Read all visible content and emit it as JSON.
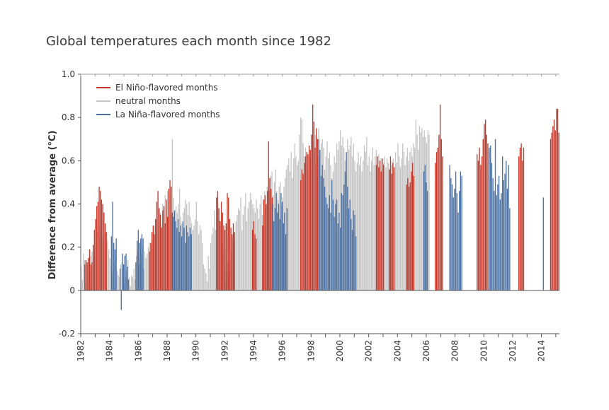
{
  "chart_data": {
    "type": "bar",
    "title": "Global temperatures each month since 1982",
    "xlabel": "",
    "ylabel": "Difference from average (°C)",
    "ylim": [
      -0.2,
      1.0
    ],
    "yticks": [
      "1.0",
      "0.8",
      "0.6",
      "0.4",
      "0.2",
      "0",
      "-0.2"
    ],
    "ytick_values": [
      1.0,
      0.8,
      0.6,
      0.4,
      0.2,
      0,
      -0.2
    ],
    "xtick_labels": [
      "1982",
      "1984",
      "1986",
      "1988",
      "1990",
      "1992",
      "1994",
      "1996",
      "1998",
      "2000",
      "2002",
      "2004",
      "2006",
      "2008",
      "2010",
      "2012",
      "2014"
    ],
    "xtick_years": [
      1982,
      1984,
      1986,
      1988,
      1990,
      1992,
      1994,
      1996,
      1998,
      2000,
      2002,
      2004,
      2006,
      2008,
      2010,
      2012,
      2014
    ],
    "x_start": 1982,
    "x_end": 2015.25,
    "legend_position": "top-left",
    "colors": {
      "elnino": "#c0392b",
      "neutral": "#c4c4c4",
      "lanina": "#4a6fa0",
      "axis": "#555555"
    },
    "series": [
      {
        "name": "El Niño-flavored months",
        "key": "elnino",
        "months": [
          {
            "start": 1982.25,
            "values": [
              0.12,
              0.14,
              0.13,
              0.15,
              0.19,
              0.12,
              0.13,
              0.21,
              0.28,
              0.33,
              0.39,
              0.41
            ]
          },
          {
            "start": 1983.25,
            "values": [
              0.48,
              0.46,
              0.42,
              0.4,
              0.36,
              0.31,
              0.27
            ]
          },
          {
            "start": 1986.75,
            "values": [
              0.18,
              0.22,
              0.27,
              0.3,
              0.26,
              0.33,
              0.41,
              0.46,
              0.38,
              0.35,
              0.29,
              0.37,
              0.39,
              0.31,
              0.42,
              0.34,
              0.47,
              0.51,
              0.48,
              0.36
            ]
          },
          {
            "start": 1991.4,
            "values": [
              0.43,
              0.46,
              0.38,
              0.32,
              0.41,
              0.36,
              0.3,
              0.28,
              0.31,
              0.45,
              0.43,
              0.33,
              0.29,
              0.26,
              0.31,
              0.27
            ]
          },
          {
            "start": 1993.9,
            "values": [
              0.28,
              0.32,
              0.26,
              0.24
            ]
          },
          {
            "start": 1994.6,
            "values": [
              0.3,
              0.42,
              0.44,
              0.4,
              0.46,
              0.69,
              0.52,
              0.47,
              0.43
            ]
          },
          {
            "start": 1997.25,
            "values": [
              0.51,
              0.56,
              0.54,
              0.59,
              0.62,
              0.64,
              0.63,
              0.67,
              0.65,
              0.72,
              0.86,
              0.78,
              0.66,
              0.75,
              0.7,
              0.62
            ]
          },
          {
            "start": 2002.5,
            "values": [
              0.58,
              0.62,
              0.57,
              0.6,
              0.55,
              0.61,
              0.58
            ]
          },
          {
            "start": 2003.4,
            "values": [
              0.56,
              0.62,
              0.54,
              0.59,
              0.57
            ]
          },
          {
            "start": 2004.6,
            "values": [
              0.49,
              0.52,
              0.48,
              0.5,
              0.55,
              0.59,
              0.53
            ]
          },
          {
            "start": 2006.6,
            "values": [
              0.59,
              0.64,
              0.66,
              0.72,
              0.86,
              0.7,
              0.62
            ]
          },
          {
            "start": 2009.5,
            "values": [
              0.63,
              0.6,
              0.66,
              0.58,
              0.62,
              0.7,
              0.77,
              0.79,
              0.72,
              0.68
            ]
          },
          {
            "start": 2012.4,
            "values": [
              0.62,
              0.66,
              0.68,
              0.6,
              0.66
            ]
          },
          {
            "start": 2014.6,
            "values": [
              0.7,
              0.73,
              0.76,
              0.79,
              0.74,
              0.84,
              0.84,
              0.73
            ]
          }
        ]
      },
      {
        "name": "neutral months",
        "key": "neutral"
      },
      {
        "name": "La Niña-flavored months",
        "key": "lanina",
        "months": [
          {
            "start": 1984.1,
            "values": [
              0.25,
              0.41,
              0.22,
              0.19,
              0.24
            ]
          },
          {
            "start": 1984.7,
            "values": [
              0.1,
              -0.09,
              0.17,
              0.12,
              0.16,
              0.17,
              0.11,
              0.05
            ]
          },
          {
            "start": 1985.8,
            "values": [
              0.13,
              0.23,
              0.28,
              0.22,
              0.24,
              0.26,
              0.24
            ]
          },
          {
            "start": 1988.4,
            "values": [
              0.34,
              0.37,
              0.32,
              0.29,
              0.33,
              0.27,
              0.3,
              0.25,
              0.32,
              0.29,
              0.22,
              0.3,
              0.27,
              0.25,
              0.29,
              0.26
            ]
          },
          {
            "start": 1995.3,
            "values": [
              0.4,
              0.32,
              0.38,
              0.45,
              0.36,
              0.4,
              0.33,
              0.45,
              0.41,
              0.31,
              0.36,
              0.26,
              0.38
            ]
          },
          {
            "start": 1998.5,
            "values": [
              0.7,
              0.65,
              0.53,
              0.58,
              0.52,
              0.48,
              0.43,
              0.4,
              0.38,
              0.44,
              0.36,
              0.51,
              0.42,
              0.34,
              0.4,
              0.42,
              0.31,
              0.36,
              0.29,
              0.45,
              0.44,
              0.49,
              0.55,
              0.64,
              0.48,
              0.38,
              0.42,
              0.33,
              0.28,
              0.37,
              0.35,
              0.25
            ]
          },
          {
            "start": 2005.8,
            "values": [
              0.55,
              0.58,
              0.5,
              0.46
            ]
          },
          {
            "start": 2007.6,
            "values": [
              0.58,
              0.52,
              0.49,
              0.43,
              0.47,
              0.55,
              0.45,
              0.36,
              0.46,
              0.55,
              0.53
            ]
          },
          {
            "start": 2010.35,
            "values": [
              0.66,
              0.67,
              0.59,
              0.52,
              0.46,
              0.7,
              0.44,
              0.49,
              0.53,
              0.42,
              0.45,
              0.62,
              0.51,
              0.54,
              0.6,
              0.47,
              0.58,
              0.38
            ]
          },
          {
            "start": 2014.1,
            "values": [
              0.43
            ]
          }
        ]
      }
    ],
    "neutral_values": [
      0.11,
      0.05,
      0.17,
      0.14,
      0.04,
      0.1,
      0.12,
      0.09,
      0.16,
      0.18,
      0.15,
      0.16,
      0.2,
      0.28,
      0.26,
      0.3,
      0.28,
      0.24,
      0.28,
      0.26,
      0.3,
      0.2,
      0.23,
      0.19,
      0.15,
      0.12,
      0.08,
      0.1,
      0.13,
      0.16,
      0.09,
      0.07,
      0.06,
      0.12,
      0.13,
      0.1,
      0.03,
      0.06,
      0.09,
      0.14,
      0.06,
      0.02,
      0.07,
      0.06,
      0.1,
      0.05,
      0.16,
      0.18,
      0.15,
      0.12,
      0.17,
      0.2,
      0.1,
      0.18,
      0.15,
      0.17,
      0.2,
      0.22,
      0.19,
      0.24,
      0.28,
      0.3,
      0.27,
      0.32,
      0.28,
      0.33,
      0.36,
      0.3,
      0.4,
      0.35,
      0.44,
      0.38,
      0.46,
      0.41,
      0.35,
      0.48,
      0.7,
      0.43,
      0.37,
      0.39,
      0.36,
      0.4,
      0.47,
      0.34,
      0.31,
      0.36,
      0.38,
      0.42,
      0.4,
      0.35,
      0.41,
      0.34,
      0.31,
      0.28,
      0.3,
      0.33,
      0.41,
      0.32,
      0.26,
      0.3,
      0.28,
      0.22,
      0.12,
      0.1,
      0.08,
      0.04,
      0.16,
      0.1,
      0.22,
      0.26,
      0.29,
      0.37,
      0.28,
      0.37,
      0.4,
      0.34,
      0.3,
      0.22,
      0.18,
      0.11,
      0.05,
      0.09,
      0.13,
      0.08,
      0.14,
      0.18,
      0.24,
      0.3,
      0.24,
      0.32,
      0.35,
      0.38,
      0.37,
      0.43,
      0.28,
      0.35,
      0.39,
      0.45,
      0.32,
      0.38,
      0.41,
      0.45,
      0.42,
      0.4,
      0.38,
      0.36,
      0.42,
      0.38,
      0.33,
      0.4,
      0.44,
      0.35,
      0.42,
      0.46,
      0.38,
      0.48,
      0.5,
      0.46,
      0.53,
      0.55,
      0.44,
      0.5,
      0.56,
      0.46,
      0.42,
      0.48,
      0.5,
      0.39,
      0.43,
      0.48,
      0.52,
      0.56,
      0.58,
      0.61,
      0.55,
      0.64,
      0.52,
      0.61,
      0.68,
      0.62,
      0.58,
      0.6,
      0.72,
      0.8,
      0.79,
      0.68,
      0.62,
      0.66,
      0.58,
      0.55,
      0.62,
      0.6,
      0.72,
      0.75,
      0.69,
      0.72,
      0.66,
      0.58,
      0.75,
      0.65,
      0.68,
      0.7,
      0.66,
      0.56,
      0.62,
      0.69,
      0.61,
      0.64,
      0.58,
      0.52,
      0.55,
      0.62,
      0.59,
      0.68,
      0.65,
      0.69,
      0.74,
      0.67,
      0.71,
      0.66,
      0.6,
      0.64,
      0.7,
      0.65,
      0.67,
      0.71,
      0.62,
      0.68,
      0.6,
      0.55,
      0.59,
      0.64,
      0.58,
      0.62,
      0.55,
      0.6,
      0.67,
      0.64,
      0.71,
      0.58,
      0.62,
      0.55,
      0.6,
      0.66,
      0.58,
      0.62,
      0.65,
      0.58,
      0.63,
      0.57,
      0.61,
      0.55,
      0.59,
      0.62,
      0.57,
      0.61,
      0.59,
      0.56,
      0.6,
      0.58,
      0.61,
      0.55,
      0.64,
      0.59,
      0.68,
      0.62,
      0.57,
      0.61,
      0.68,
      0.64,
      0.58,
      0.62,
      0.66,
      0.6,
      0.64,
      0.66,
      0.62,
      0.68,
      0.66,
      0.79,
      0.72,
      0.65,
      0.76,
      0.73,
      0.75,
      0.71,
      0.74,
      0.71,
      0.68,
      0.74,
      0.72
    ]
  }
}
